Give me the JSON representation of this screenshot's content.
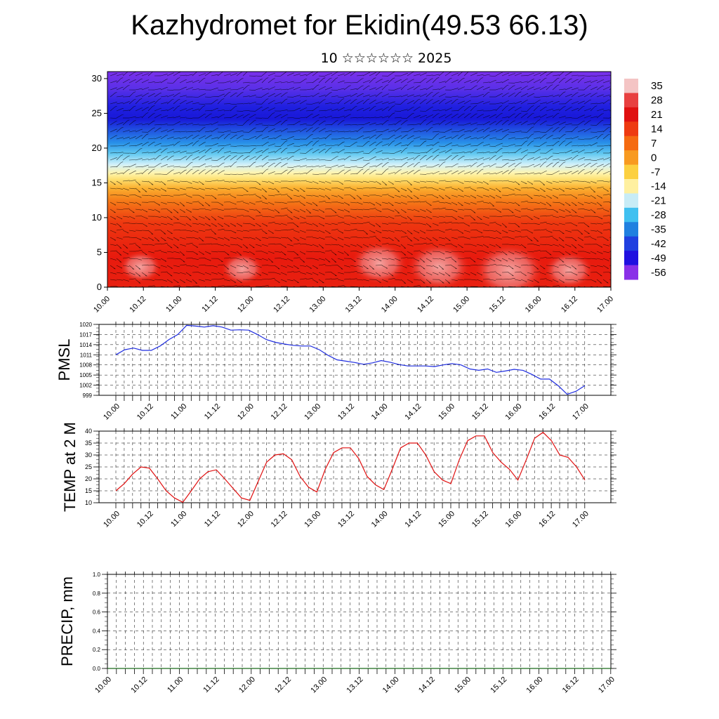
{
  "header": {
    "title": "Kazhydromet for Ekidin(49.53 66.13)",
    "subtitle": "10 ☆☆☆☆☆☆ 2025"
  },
  "colors": {
    "pmsl_line": "#1f2de0",
    "temp_line": "#e01010",
    "precip_line": "#1a6b1a",
    "grid": "#000000"
  },
  "chart_data": [
    {
      "id": "cross_section",
      "type": "heatmap",
      "description_ref": "temperature cross-section with wind barbs",
      "x_ticks": [
        "10.00",
        "10.12",
        "11.00",
        "11.12",
        "12.00",
        "12.12",
        "13.00",
        "13.12",
        "14.00",
        "14.12",
        "15.00",
        "15.12",
        "16.00",
        "16.12",
        "17.00"
      ],
      "y_ticks": [
        0,
        5,
        10,
        15,
        20,
        25,
        30
      ],
      "ylim": [
        0,
        31
      ],
      "colorbar_labels": [
        "35",
        "28",
        "21",
        "14",
        "7",
        "0",
        "-7",
        "-14",
        "-21",
        "-28",
        "-35",
        "-42",
        "-49",
        "-56"
      ],
      "colorbar_colors": [
        "#f4c4c4",
        "#e84040",
        "#e01010",
        "#ee3a10",
        "#f56a10",
        "#f89a20",
        "#fcd040",
        "#fff0a0",
        "#c8ecf6",
        "#40c0f0",
        "#2080e0",
        "#2040e0",
        "#2010e0",
        "#8a30e8"
      ]
    },
    {
      "id": "pmsl",
      "type": "line",
      "ylabel": "PMSL",
      "ylim": [
        999,
        1020
      ],
      "y_ticks": [
        999,
        1002,
        1005,
        1008,
        1011,
        1014,
        1017,
        1020
      ],
      "x_ticks": [
        "10.00",
        "10.12",
        "11.00",
        "11.12",
        "12.00",
        "12.12",
        "13.00",
        "13.12",
        "14.00",
        "14.12",
        "15.00",
        "15.12",
        "16.00",
        "16.12",
        "17.00"
      ],
      "series": [
        {
          "values": [
            1011,
            1012.5,
            1013,
            1012.3,
            1012.3,
            1013.6,
            1015.5,
            1017,
            1019.7,
            1019.5,
            1019.2,
            1019.6,
            1019.2,
            1018.3,
            1018.4,
            1018.3,
            1017,
            1015.5,
            1014.7,
            1014.2,
            1013.8,
            1013.6,
            1013.6,
            1012.5,
            1010.8,
            1009.5,
            1009.1,
            1008.7,
            1008.2,
            1008.6,
            1009.3,
            1008.8,
            1008.1,
            1007.7,
            1007.7,
            1007.7,
            1007.5,
            1008,
            1008.4,
            1008,
            1006.8,
            1006.4,
            1006.8,
            1005.8,
            1006.2,
            1006.7,
            1006.4,
            1005.2,
            1003.8,
            1003.8,
            1001.8,
            999.3,
            1000.2,
            1001.9
          ]
        }
      ]
    },
    {
      "id": "temp",
      "type": "line",
      "ylabel": "TEMP at 2 M",
      "ylim": [
        10,
        40
      ],
      "y_ticks": [
        10,
        15,
        20,
        25,
        30,
        35,
        40
      ],
      "x_ticks": [
        "10.00",
        "10.12",
        "11.00",
        "11.12",
        "12.00",
        "12.12",
        "13.00",
        "13.12",
        "14.00",
        "14.12",
        "15.00",
        "15.12",
        "16.00",
        "16.12",
        "17.00"
      ],
      "series": [
        {
          "values": [
            15,
            18,
            22,
            25,
            24.5,
            20,
            15,
            12,
            10.2,
            15,
            20,
            23,
            23.8,
            20,
            16,
            12,
            11,
            19,
            27,
            30,
            30.5,
            28,
            21,
            16.5,
            14.5,
            24,
            31,
            33,
            33,
            28.5,
            21,
            17.5,
            15.5,
            24,
            33,
            35,
            35,
            30,
            23,
            19.5,
            18,
            28,
            36,
            38,
            38,
            31,
            27,
            24,
            19.5,
            28,
            37,
            39.5,
            36,
            30,
            29,
            25,
            19.5
          ]
        }
      ]
    },
    {
      "id": "precip",
      "type": "line",
      "ylabel": "PRECIP, mm",
      "ylim": [
        0,
        1
      ],
      "y_ticks": [
        "0.0",
        "0.2",
        "0.4",
        "0.6",
        "0.8",
        "1.0"
      ],
      "x_ticks": [
        "10.00",
        "10.12",
        "11.00",
        "11.12",
        "12.00",
        "12.12",
        "13.00",
        "13.12",
        "14.00",
        "14.12",
        "15.00",
        "15.12",
        "16.00",
        "16.12",
        "17.00"
      ],
      "series": [
        {
          "values": [
            0,
            0
          ]
        }
      ]
    }
  ]
}
